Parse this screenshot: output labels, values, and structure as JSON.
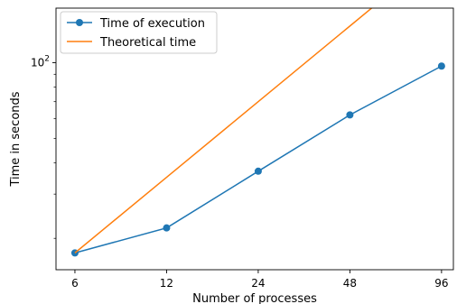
{
  "chart_data": {
    "type": "line",
    "xscale": "log",
    "yscale": "log",
    "xlabel": "Number of processes",
    "ylabel": "Time in seconds",
    "x": [
      6,
      12,
      24,
      48,
      96
    ],
    "x_tick_labels": [
      "6",
      "12",
      "24",
      "48",
      "96"
    ],
    "xlim": [
      5.2,
      105
    ],
    "ylim": [
      15,
      165
    ],
    "y_tick_labels": [
      {
        "value": 100,
        "base": "10",
        "exp": "2"
      }
    ],
    "y_minor_ticks": [
      20,
      30,
      40,
      50,
      60,
      70,
      80,
      90
    ],
    "series": [
      {
        "name": "Time of execution",
        "values": [
          17.5,
          22,
          37,
          62,
          97
        ],
        "color": "#1f77b4",
        "marker": "circle"
      },
      {
        "name": "Theoretical time",
        "values": [
          17.5,
          35,
          70,
          140,
          280
        ],
        "color": "#ff7f0e",
        "marker": "none"
      }
    ],
    "legend_position": "upper-left",
    "grid": false
  }
}
